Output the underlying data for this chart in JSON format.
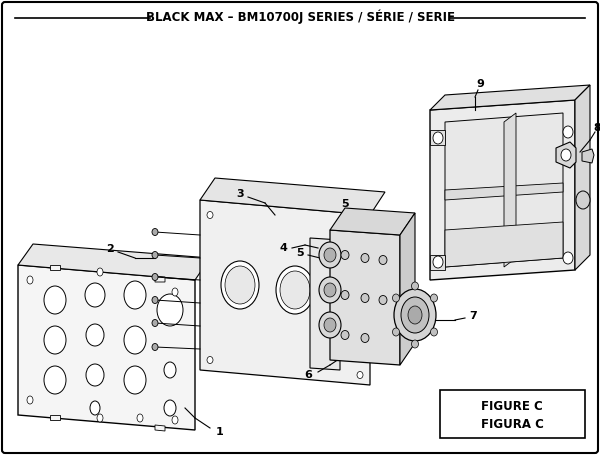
{
  "title": "BLACK MAX – BM10700J SERIES / SÉRIE / SERIE",
  "bg_color": "#ffffff",
  "border_color": "#000000",
  "title_fontsize": 8.5,
  "figure_label": "FIGURE C",
  "figure_label2": "FIGURA C",
  "figure_label_fontsize": 8.5,
  "label_fontsize": 8
}
